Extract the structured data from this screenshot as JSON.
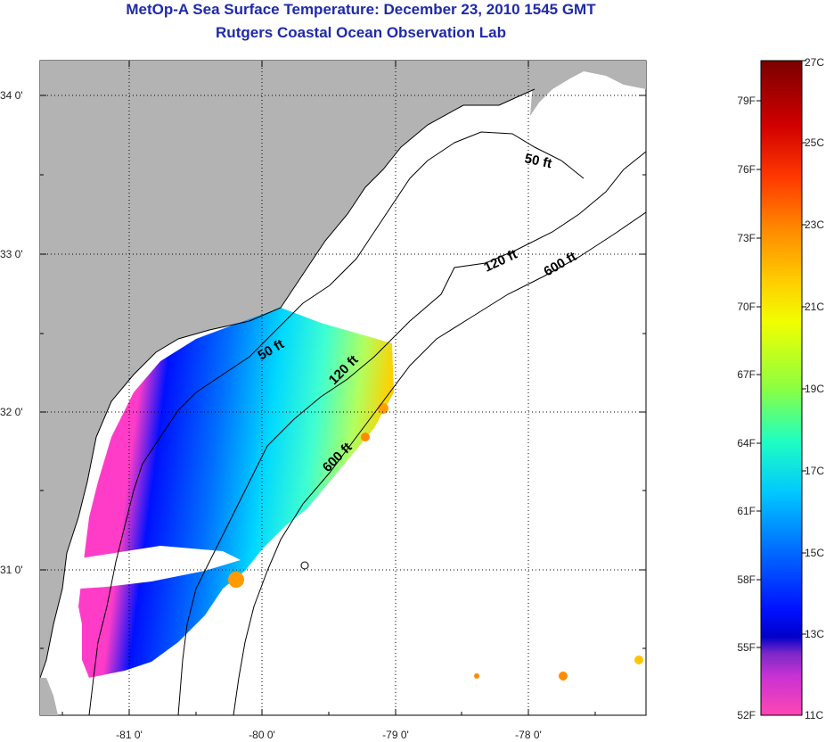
{
  "header": {
    "title": "MetOp-A Sea Surface Temperature:  December 23, 2010 1545 GMT",
    "subtitle": "Rutgers Coastal Ocean Observation Lab"
  },
  "map": {
    "lon_ticks": [
      "-81 0'",
      "-80 0'",
      "-79 0'",
      "-78 0'"
    ],
    "lat_ticks": [
      "34 0'",
      "33 0'",
      "32 0'",
      "31 0'"
    ],
    "isobath_labels": [
      "50 ft",
      "120 ft",
      "600 ft",
      "50 ft",
      "120 ft",
      "600 ft"
    ]
  },
  "colorbar": {
    "fahrenheit_labels": [
      "79F",
      "76F",
      "73F",
      "70F",
      "67F",
      "64F",
      "61F",
      "58F",
      "55F",
      "52F"
    ],
    "celsius_labels": [
      "27C",
      "25C",
      "23C",
      "21C",
      "19C",
      "17C",
      "15C",
      "13C",
      "11C"
    ],
    "colors": [
      "#7a0000",
      "#d20000",
      "#ff3a00",
      "#ff8c00",
      "#ffd000",
      "#f0ff00",
      "#8cff40",
      "#20ffc0",
      "#00c8ff",
      "#0060ff",
      "#0010ff",
      "#0000c8",
      "#7a28c8",
      "#c832d2",
      "#ff3cc8",
      "#ff46b4"
    ]
  },
  "colors": {
    "title": "#1f2aa8",
    "land": "#b3b3b3",
    "ocean_nodata": "#ffffff"
  }
}
